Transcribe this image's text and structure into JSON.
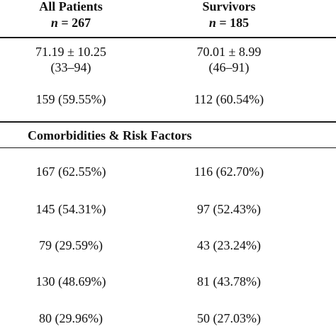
{
  "columns": [
    {
      "title": "All Patients",
      "n_label": "n",
      "n_value": "= 267"
    },
    {
      "title": "Survivors",
      "n_label": "n",
      "n_value": "= 185"
    }
  ],
  "rows_top": [
    {
      "col1": [
        "71.19 ± 10.25",
        "(33–94)"
      ],
      "col2": [
        "70.01 ± 8.99",
        "(46–91)"
      ]
    },
    {
      "col1": [
        "159 (59.55%)"
      ],
      "col2": [
        "112 (60.54%)"
      ]
    }
  ],
  "section_title": "Comorbidities & Risk Factors",
  "rows_bottom": [
    {
      "col1": "167 (62.55%)",
      "col2": "116 (62.70%)"
    },
    {
      "col1": "145 (54.31%)",
      "col2": "97 (52.43%)"
    },
    {
      "col1": "79 (29.59%)",
      "col2": "43 (23.24%)"
    },
    {
      "col1": "130 (48.69%)",
      "col2": "81 (43.78%)"
    },
    {
      "col1": "80 (29.96%)",
      "col2": "50 (27.03%)"
    }
  ]
}
